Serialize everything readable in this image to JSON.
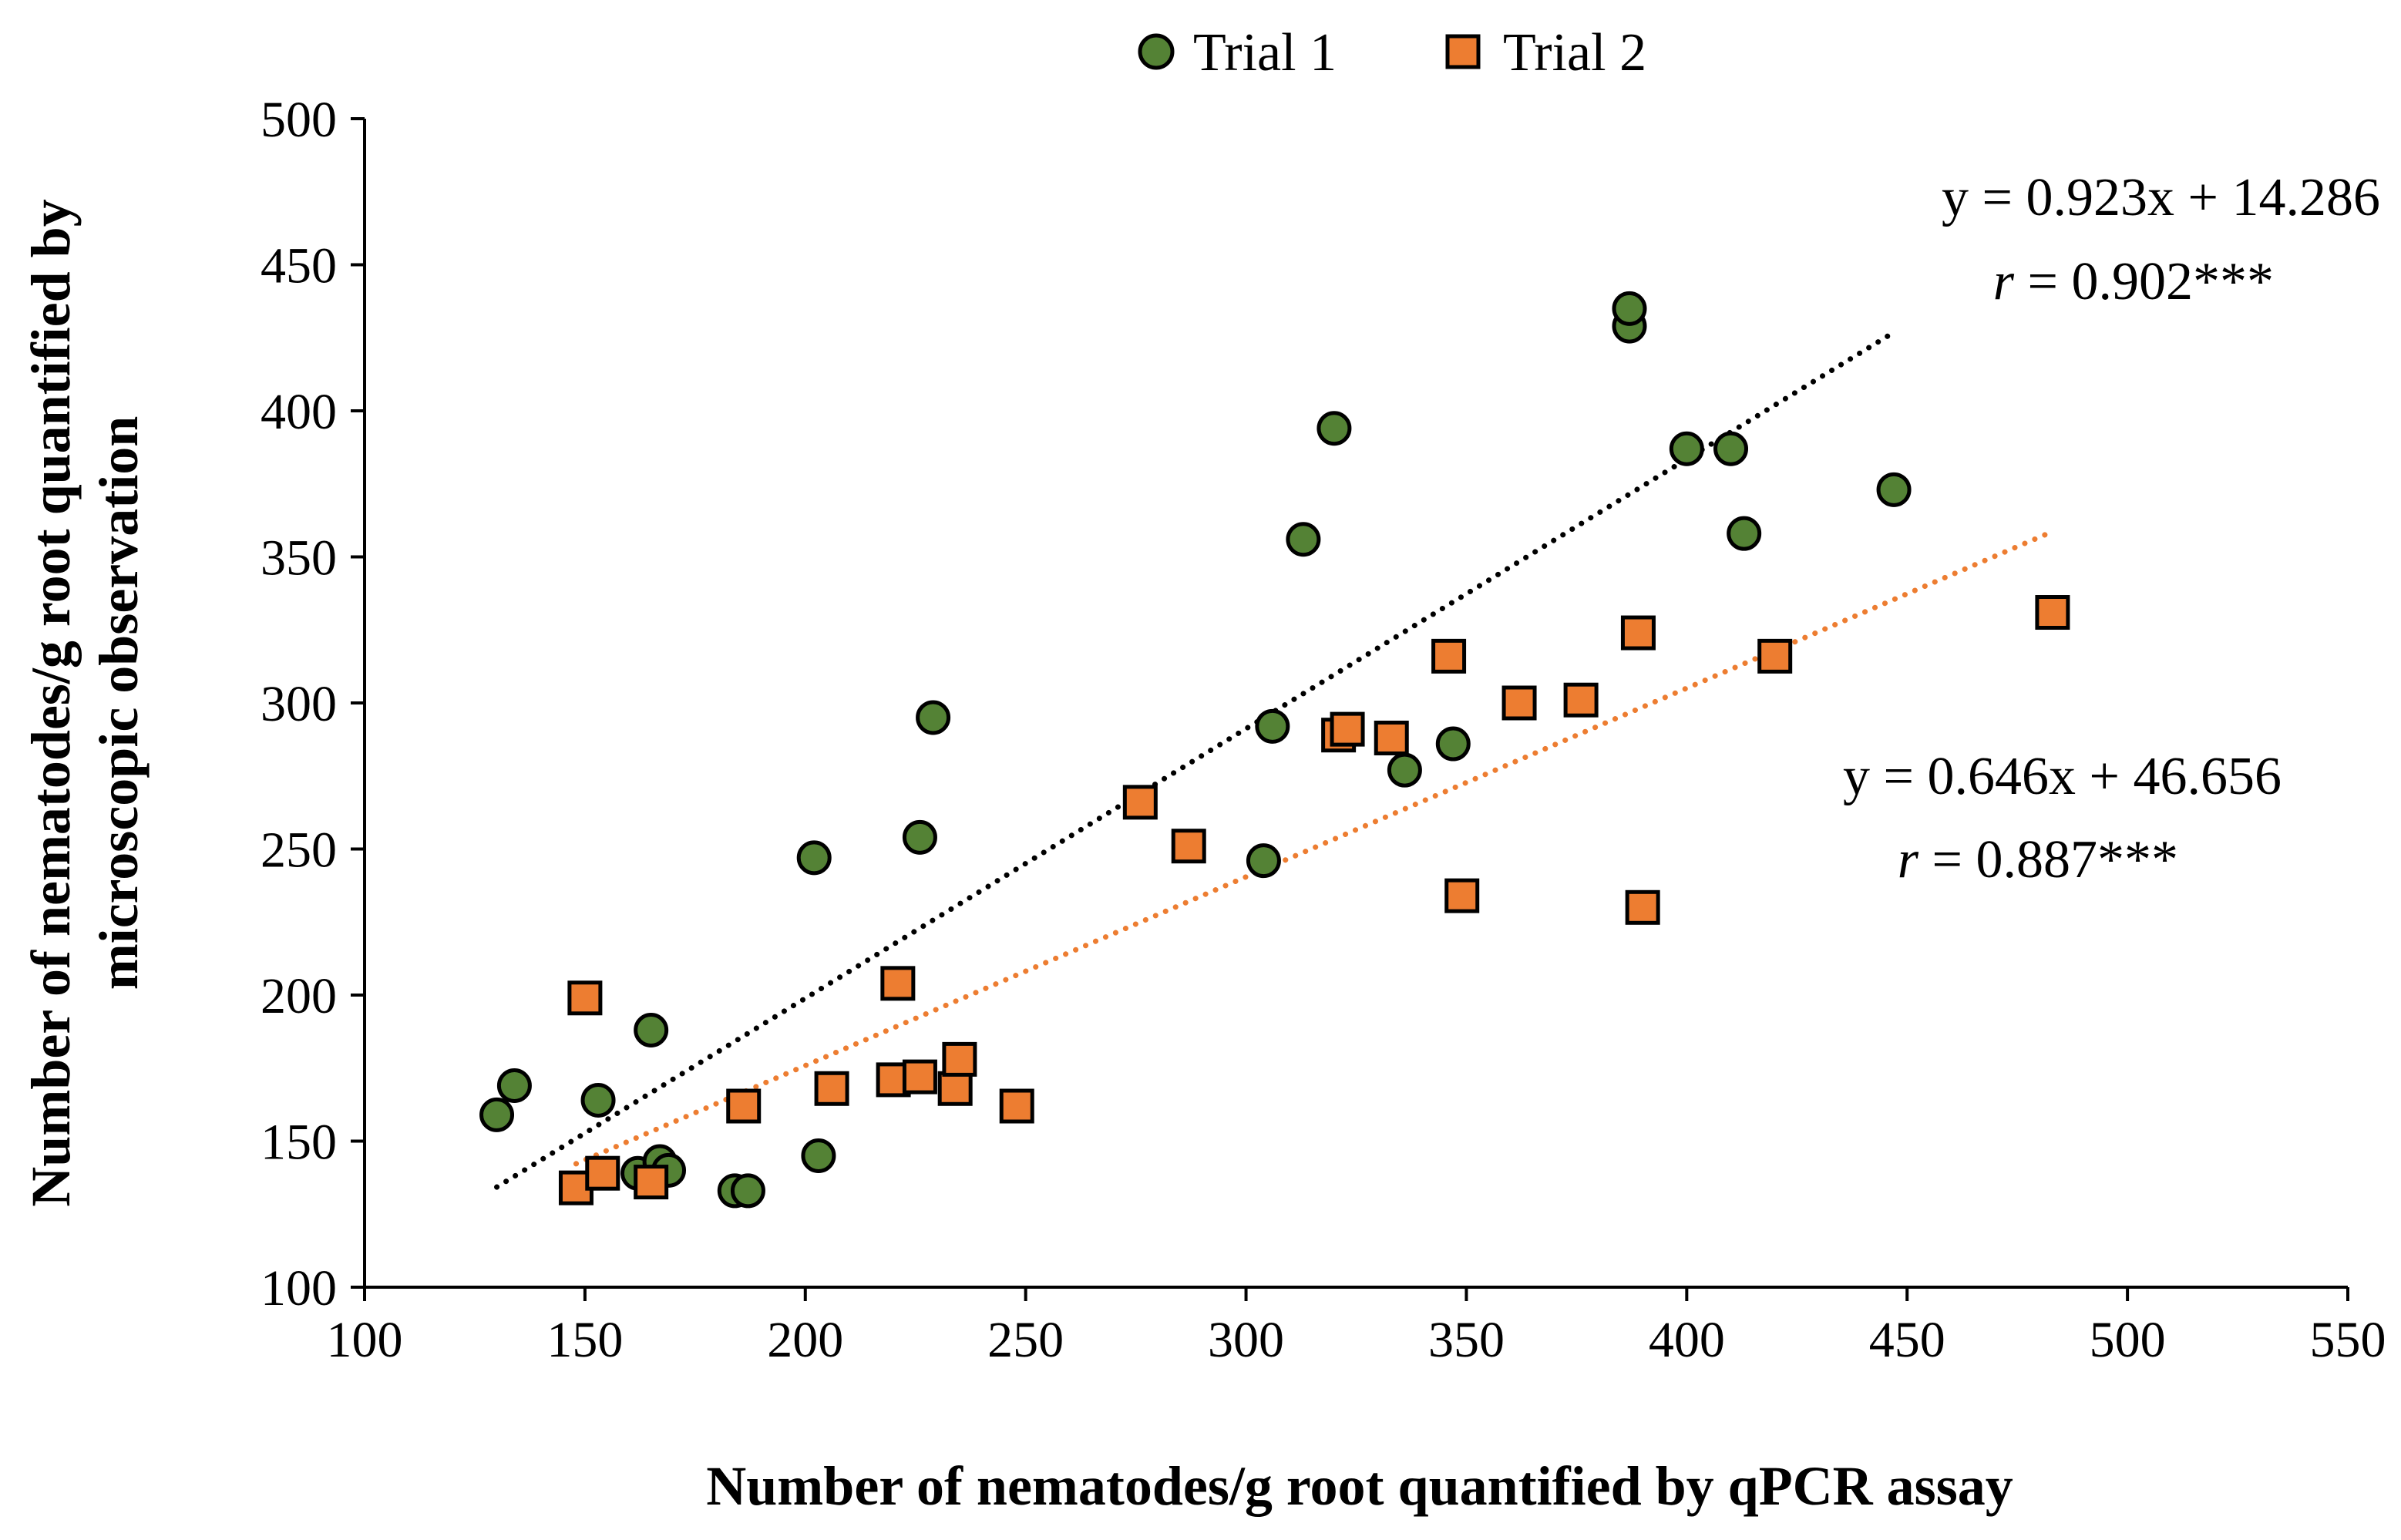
{
  "chart_data": {
    "type": "scatter",
    "title": "",
    "xlabel": "Number of nematodes/g root quantified by qPCR assay",
    "ylabel_lines": [
      "Number of nematodes/g root quantified by",
      "microscopic observation"
    ],
    "xlim": [
      100,
      550
    ],
    "ylim": [
      100,
      500
    ],
    "x_ticks": [
      100,
      150,
      200,
      250,
      300,
      350,
      400,
      450,
      500,
      550
    ],
    "y_ticks": [
      100,
      150,
      200,
      250,
      300,
      350,
      400,
      450,
      500
    ],
    "legend_position": "top-center",
    "grid": false,
    "series": [
      {
        "name": "Trial 1",
        "marker": "circle",
        "color": "#548235",
        "trend_color": "#000000",
        "equation": "y = 0.923x + 14.286",
        "r_label": "r",
        "r_value": " = 0.902***",
        "trendline": {
          "x_start": 130,
          "x_end": 447,
          "slope": 0.923,
          "intercept": 14.286
        },
        "points": [
          {
            "x": 130,
            "y": 159
          },
          {
            "x": 134,
            "y": 169
          },
          {
            "x": 153,
            "y": 164
          },
          {
            "x": 162,
            "y": 139
          },
          {
            "x": 165,
            "y": 188
          },
          {
            "x": 167,
            "y": 143
          },
          {
            "x": 169,
            "y": 140
          },
          {
            "x": 184,
            "y": 133
          },
          {
            "x": 187,
            "y": 133
          },
          {
            "x": 202,
            "y": 247
          },
          {
            "x": 203,
            "y": 145
          },
          {
            "x": 226,
            "y": 254
          },
          {
            "x": 229,
            "y": 295
          },
          {
            "x": 304,
            "y": 246
          },
          {
            "x": 306,
            "y": 292
          },
          {
            "x": 313,
            "y": 356
          },
          {
            "x": 320,
            "y": 394
          },
          {
            "x": 336,
            "y": 277
          },
          {
            "x": 347,
            "y": 286
          },
          {
            "x": 387,
            "y": 429
          },
          {
            "x": 387,
            "y": 435
          },
          {
            "x": 400,
            "y": 387
          },
          {
            "x": 410,
            "y": 387
          },
          {
            "x": 413,
            "y": 358
          },
          {
            "x": 447,
            "y": 373
          }
        ]
      },
      {
        "name": "Trial 2",
        "marker": "square",
        "color": "#ED7D31",
        "trend_color": "#ED7D31",
        "equation": "y = 0.646x + 46.656",
        "r_label": "r",
        "r_value": " = 0.887***",
        "trendline": {
          "x_start": 148,
          "x_end": 483,
          "slope": 0.646,
          "intercept": 46.656
        },
        "points": [
          {
            "x": 148,
            "y": 134
          },
          {
            "x": 150,
            "y": 199
          },
          {
            "x": 154,
            "y": 139
          },
          {
            "x": 165,
            "y": 136
          },
          {
            "x": 186,
            "y": 162
          },
          {
            "x": 206,
            "y": 168
          },
          {
            "x": 220,
            "y": 171
          },
          {
            "x": 221,
            "y": 204
          },
          {
            "x": 226,
            "y": 172
          },
          {
            "x": 234,
            "y": 168
          },
          {
            "x": 235,
            "y": 178
          },
          {
            "x": 248,
            "y": 162
          },
          {
            "x": 276,
            "y": 266
          },
          {
            "x": 287,
            "y": 251
          },
          {
            "x": 321,
            "y": 289
          },
          {
            "x": 323,
            "y": 291
          },
          {
            "x": 333,
            "y": 288
          },
          {
            "x": 346,
            "y": 316
          },
          {
            "x": 349,
            "y": 234
          },
          {
            "x": 362,
            "y": 300
          },
          {
            "x": 376,
            "y": 301
          },
          {
            "x": 389,
            "y": 324
          },
          {
            "x": 390,
            "y": 230
          },
          {
            "x": 420,
            "y": 316
          },
          {
            "x": 483,
            "y": 331
          }
        ]
      }
    ]
  }
}
